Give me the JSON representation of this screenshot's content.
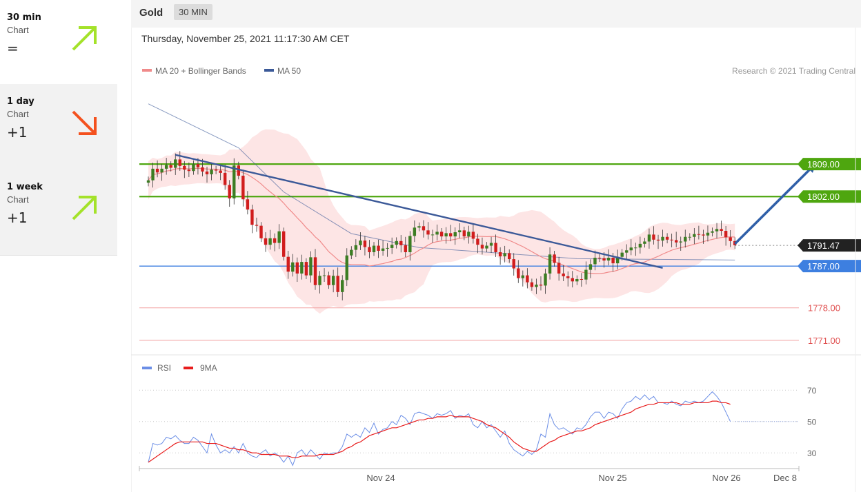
{
  "instrument": "Gold",
  "timeframe": "30 MIN",
  "datetime": "Thursday, November 25, 2021 11:17:30 AM CET",
  "copyright": "Research © 2021 Trading Central",
  "periods": [
    {
      "name": "30 min",
      "chart": "Chart",
      "value": "=",
      "direction": "up",
      "color": "#a4e22a"
    },
    {
      "name": "1 day",
      "chart": "Chart",
      "value": "+1",
      "direction": "down",
      "color": "#f4511e"
    },
    {
      "name": "1 week",
      "chart": "Chart",
      "value": "+1",
      "direction": "up",
      "color": "#a4e22a"
    }
  ],
  "colors": {
    "bull": "#3c7d23",
    "bear": "#d11d1d",
    "ma20": "#f08a8a",
    "ma50": "#3b5998",
    "band": "#fde0e0",
    "resistance": "#4ea60f",
    "support": "#3d7fe0",
    "rsi": "#6b8ee6",
    "rsi_ma": "#e81d1d"
  },
  "chart_data": {
    "type": "candlestick",
    "legend": [
      {
        "name": "MA 20 + Bollinger Bands",
        "color": "#f08a8a"
      },
      {
        "name": "MA 50",
        "color": "#3b5998"
      }
    ],
    "x_ticks": [
      "Nov 24",
      "Nov 25",
      "Nov 26",
      "Dec 8"
    ],
    "ylim": [
      1768,
      1827
    ],
    "price_levels": [
      {
        "value": 1809.0,
        "label": "1809.00",
        "kind": "resistance"
      },
      {
        "value": 1802.0,
        "label": "1802.00",
        "kind": "resistance"
      },
      {
        "value": 1791.47,
        "label": "1791.47",
        "kind": "last"
      },
      {
        "value": 1787.0,
        "label": "1787.00",
        "kind": "support"
      },
      {
        "value": 1778.0,
        "label": "1778.00",
        "kind": "target"
      },
      {
        "value": 1771.0,
        "label": "1771.00",
        "kind": "target"
      }
    ],
    "closes": [
      1805.5,
      1808.0,
      1807.2,
      1808.0,
      1808.8,
      1808.2,
      1810.0,
      1808.6,
      1807.8,
      1807.5,
      1809.0,
      1808.3,
      1807.4,
      1806.8,
      1807.8,
      1807.6,
      1807.1,
      1804.5,
      1801.6,
      1808.7,
      1806.5,
      1801.4,
      1799.2,
      1795.9,
      1795.7,
      1793.0,
      1791.6,
      1793.0,
      1792.0,
      1794.5,
      1789.0,
      1785.8,
      1787.8,
      1785.4,
      1787.9,
      1785.0,
      1788.9,
      1782.9,
      1784.9,
      1785.0,
      1782.9,
      1784.9,
      1781.4,
      1784.0,
      1789.3,
      1790.5,
      1791.5,
      1792.5,
      1791.1,
      1790.0,
      1791.4,
      1790.3,
      1790.8,
      1790.9,
      1791.6,
      1792.4,
      1791.5,
      1790.0,
      1793.5,
      1795.3,
      1795.6,
      1794.7,
      1793.8,
      1793.8,
      1794.4,
      1793.4,
      1794.1,
      1793.4,
      1794.3,
      1794.7,
      1793.4,
      1794.4,
      1792.9,
      1791.6,
      1790.8,
      1791.4,
      1792.0,
      1790.0,
      1789.1,
      1789.8,
      1788.5,
      1786.5,
      1784.4,
      1785.0,
      1783.5,
      1782.5,
      1783.0,
      1782.8,
      1785.4,
      1789.5,
      1787.7,
      1785.4,
      1784.8,
      1784.4,
      1783.7,
      1784.2,
      1784.1,
      1786.2,
      1787.4,
      1788.8,
      1788.7,
      1788.2,
      1788.8,
      1787.6,
      1789.0,
      1789.9,
      1790.4,
      1791.0,
      1791.0,
      1791.8,
      1792.3,
      1793.8,
      1792.7,
      1792.5,
      1793.3,
      1792.7,
      1792.6,
      1792.1,
      1792.3,
      1793.3,
      1793.3,
      1793.9,
      1793.8,
      1793.6,
      1794.2,
      1794.5,
      1795.0,
      1794.6,
      1793.2,
      1792.4,
      1791.5
    ],
    "ma50": {
      "start_index": 0,
      "start": 1822.0,
      "points": [
        [
          0,
          1822.0
        ],
        [
          20,
          1812.5
        ],
        [
          30,
          1803.0
        ],
        [
          45,
          1794.0
        ],
        [
          60,
          1791.0
        ],
        [
          75,
          1790.0
        ],
        [
          95,
          1788.6
        ],
        [
          120,
          1788.4
        ],
        [
          130,
          1788.3
        ]
      ]
    },
    "trendline": {
      "from": [
        6,
        1811.0
      ],
      "to": [
        114,
        1786.6
      ]
    },
    "forecast_arrow": {
      "from": [
        130,
        1791.8
      ],
      "to": [
        148,
        1809.2
      ]
    },
    "rsi": {
      "levels": [
        70,
        50,
        30
      ],
      "ylim": [
        20,
        78
      ],
      "legend": [
        {
          "name": "RSI",
          "color": "#6b8ee6"
        },
        {
          "name": "9MA",
          "color": "#e81d1d"
        }
      ],
      "values": [
        24,
        36,
        35,
        36,
        40,
        39,
        41,
        38,
        36,
        36,
        40,
        38,
        34,
        30,
        42,
        35,
        30,
        32,
        30,
        34,
        30,
        36,
        30,
        28,
        27,
        30,
        32,
        28,
        30,
        28,
        24,
        28,
        22,
        30,
        32,
        28,
        32,
        29,
        26,
        30,
        29,
        30,
        30,
        34,
        42,
        40,
        42,
        40,
        46,
        43,
        49,
        42,
        45,
        46,
        50,
        48,
        54,
        52,
        48,
        55,
        56,
        55,
        54,
        52,
        55,
        54,
        55,
        57,
        52,
        54,
        53,
        55,
        48,
        46,
        50,
        46,
        48,
        44,
        40,
        44,
        36,
        32,
        30,
        28,
        31,
        29,
        32,
        42,
        40,
        55,
        48,
        45,
        46,
        44,
        42,
        46,
        45,
        48,
        53,
        56,
        56,
        52,
        56,
        55,
        52,
        58,
        62,
        63,
        66,
        64,
        67,
        64,
        66,
        62,
        62,
        61,
        63,
        61,
        60,
        63,
        62,
        63,
        62,
        63,
        66,
        69,
        66,
        62,
        56,
        50
      ],
      "ma9": [
        24,
        26,
        28,
        30,
        32,
        34,
        36,
        37,
        37,
        37,
        37,
        37,
        37,
        36,
        36,
        36,
        35,
        34,
        33,
        33,
        32,
        32,
        31,
        30,
        30,
        29,
        29,
        29,
        29,
        28,
        28,
        28,
        27,
        27,
        28,
        28,
        28,
        28,
        29,
        29,
        29,
        29,
        30,
        31,
        33,
        34,
        36,
        37,
        39,
        41,
        42,
        43,
        44,
        45,
        46,
        46,
        47,
        48,
        49,
        50,
        51,
        51,
        52,
        52,
        53,
        53,
        53,
        54,
        53,
        53,
        53,
        53,
        52,
        51,
        50,
        48,
        47,
        46,
        44,
        42,
        40,
        37,
        35,
        33,
        32,
        31,
        31,
        33,
        35,
        37,
        38,
        40,
        41,
        42,
        43,
        44,
        44,
        45,
        46,
        48,
        49,
        50,
        51,
        52,
        53,
        54,
        55,
        56,
        58,
        59,
        60,
        61,
        61,
        62,
        62,
        62,
        62,
        62,
        61,
        61,
        61,
        62,
        62,
        62,
        62,
        63,
        63,
        62,
        62,
        61
      ]
    }
  }
}
